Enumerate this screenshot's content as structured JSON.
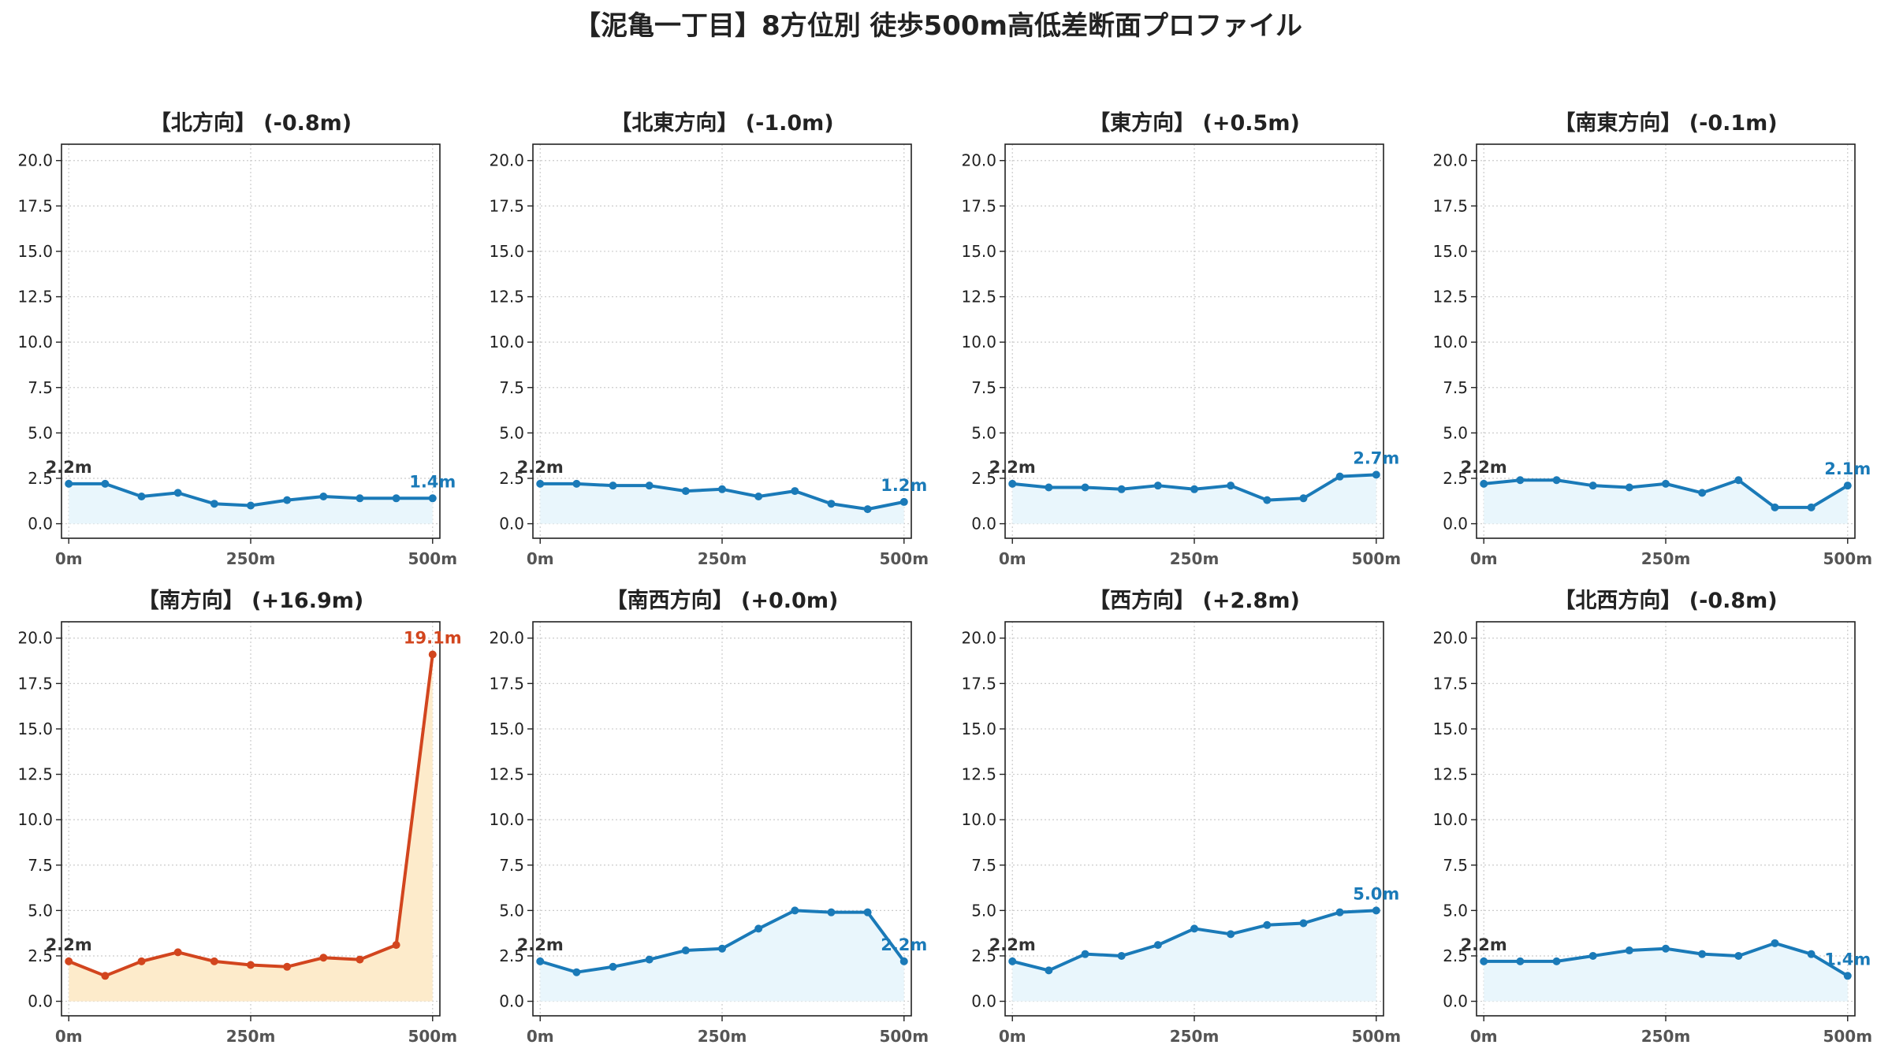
{
  "title": "【泥亀一丁目】8方位別 徒歩500m高低差断面プロファイル",
  "colors": {
    "normal_line": "#1a7ab8",
    "normal_fill": "#e9f6fc",
    "highlight_line": "#d2451e",
    "highlight_fill": "#fdebcb",
    "start_label": "#333333",
    "grid": "#cccccc"
  },
  "chart_data": [
    {
      "type": "line",
      "title": "【北方向】 (-0.8m)",
      "highlight": false,
      "x": [
        0,
        50,
        100,
        150,
        200,
        250,
        300,
        350,
        400,
        450,
        500
      ],
      "values": [
        2.2,
        2.2,
        1.5,
        1.7,
        1.1,
        1.0,
        1.3,
        1.5,
        1.4,
        1.4,
        1.4
      ],
      "start_label": "2.2m",
      "end_label": "1.4m",
      "xticks": [
        "0m",
        "250m",
        "500m"
      ],
      "yticks": [
        "0.0",
        "2.5",
        "5.0",
        "7.5",
        "10.0",
        "12.5",
        "15.0",
        "17.5",
        "20.0"
      ],
      "xlim": [
        -10,
        510
      ],
      "ylim": [
        -0.8,
        20.9
      ],
      "grid": true
    },
    {
      "type": "line",
      "title": "【北東方向】 (-1.0m)",
      "highlight": false,
      "x": [
        0,
        50,
        100,
        150,
        200,
        250,
        300,
        350,
        400,
        450,
        500
      ],
      "values": [
        2.2,
        2.2,
        2.1,
        2.1,
        1.8,
        1.9,
        1.5,
        1.8,
        1.1,
        0.8,
        1.2
      ],
      "start_label": "2.2m",
      "end_label": "1.2m",
      "xticks": [
        "0m",
        "250m",
        "500m"
      ],
      "yticks": [
        "0.0",
        "2.5",
        "5.0",
        "7.5",
        "10.0",
        "12.5",
        "15.0",
        "17.5",
        "20.0"
      ],
      "xlim": [
        -10,
        510
      ],
      "ylim": [
        -0.8,
        20.9
      ],
      "grid": true
    },
    {
      "type": "line",
      "title": "【東方向】 (+0.5m)",
      "highlight": false,
      "x": [
        0,
        50,
        100,
        150,
        200,
        250,
        300,
        350,
        400,
        450,
        500
      ],
      "values": [
        2.2,
        2.0,
        2.0,
        1.9,
        2.1,
        1.9,
        2.1,
        1.3,
        1.4,
        2.6,
        2.7
      ],
      "start_label": "2.2m",
      "end_label": "2.7m",
      "xticks": [
        "0m",
        "250m",
        "500m"
      ],
      "yticks": [
        "0.0",
        "2.5",
        "5.0",
        "7.5",
        "10.0",
        "12.5",
        "15.0",
        "17.5",
        "20.0"
      ],
      "xlim": [
        -10,
        510
      ],
      "ylim": [
        -0.8,
        20.9
      ],
      "grid": true
    },
    {
      "type": "line",
      "title": "【南東方向】 (-0.1m)",
      "highlight": false,
      "x": [
        0,
        50,
        100,
        150,
        200,
        250,
        300,
        350,
        400,
        450,
        500
      ],
      "values": [
        2.2,
        2.4,
        2.4,
        2.1,
        2.0,
        2.2,
        1.7,
        2.4,
        0.9,
        0.9,
        2.1
      ],
      "start_label": "2.2m",
      "end_label": "2.1m",
      "xticks": [
        "0m",
        "250m",
        "500m"
      ],
      "yticks": [
        "0.0",
        "2.5",
        "5.0",
        "7.5",
        "10.0",
        "12.5",
        "15.0",
        "17.5",
        "20.0"
      ],
      "xlim": [
        -10,
        510
      ],
      "ylim": [
        -0.8,
        20.9
      ],
      "grid": true
    },
    {
      "type": "line",
      "title": "【南方向】 (+16.9m)",
      "highlight": true,
      "x": [
        0,
        50,
        100,
        150,
        200,
        250,
        300,
        350,
        400,
        450,
        500
      ],
      "values": [
        2.2,
        1.4,
        2.2,
        2.7,
        2.2,
        2.0,
        1.9,
        2.4,
        2.3,
        3.1,
        19.1
      ],
      "start_label": "2.2m",
      "end_label": "19.1m",
      "xticks": [
        "0m",
        "250m",
        "500m"
      ],
      "yticks": [
        "0.0",
        "2.5",
        "5.0",
        "7.5",
        "10.0",
        "12.5",
        "15.0",
        "17.5",
        "20.0"
      ],
      "xlim": [
        -10,
        510
      ],
      "ylim": [
        -0.8,
        20.9
      ],
      "grid": true
    },
    {
      "type": "line",
      "title": "【南西方向】 (+0.0m)",
      "highlight": false,
      "x": [
        0,
        50,
        100,
        150,
        200,
        250,
        300,
        350,
        400,
        450,
        500
      ],
      "values": [
        2.2,
        1.6,
        1.9,
        2.3,
        2.8,
        2.9,
        4.0,
        5.0,
        4.9,
        4.9,
        2.2
      ],
      "start_label": "2.2m",
      "end_label": "2.2m",
      "xticks": [
        "0m",
        "250m",
        "500m"
      ],
      "yticks": [
        "0.0",
        "2.5",
        "5.0",
        "7.5",
        "10.0",
        "12.5",
        "15.0",
        "17.5",
        "20.0"
      ],
      "xlim": [
        -10,
        510
      ],
      "ylim": [
        -0.8,
        20.9
      ],
      "grid": true
    },
    {
      "type": "line",
      "title": "【西方向】 (+2.8m)",
      "highlight": false,
      "x": [
        0,
        50,
        100,
        150,
        200,
        250,
        300,
        350,
        400,
        450,
        500
      ],
      "values": [
        2.2,
        1.7,
        2.6,
        2.5,
        3.1,
        4.0,
        3.7,
        4.2,
        4.3,
        4.9,
        5.0
      ],
      "start_label": "2.2m",
      "end_label": "5.0m",
      "xticks": [
        "0m",
        "250m",
        "500m"
      ],
      "yticks": [
        "0.0",
        "2.5",
        "5.0",
        "7.5",
        "10.0",
        "12.5",
        "15.0",
        "17.5",
        "20.0"
      ],
      "xlim": [
        -10,
        510
      ],
      "ylim": [
        -0.8,
        20.9
      ],
      "grid": true
    },
    {
      "type": "line",
      "title": "【北西方向】 (-0.8m)",
      "highlight": false,
      "x": [
        0,
        50,
        100,
        150,
        200,
        250,
        300,
        350,
        400,
        450,
        500
      ],
      "values": [
        2.2,
        2.2,
        2.2,
        2.5,
        2.8,
        2.9,
        2.6,
        2.5,
        3.2,
        2.6,
        1.4
      ],
      "start_label": "2.2m",
      "end_label": "1.4m",
      "xticks": [
        "0m",
        "250m",
        "500m"
      ],
      "yticks": [
        "0.0",
        "2.5",
        "5.0",
        "7.5",
        "10.0",
        "12.5",
        "15.0",
        "17.5",
        "20.0"
      ],
      "xlim": [
        -10,
        510
      ],
      "ylim": [
        -0.8,
        20.9
      ],
      "grid": true
    }
  ]
}
